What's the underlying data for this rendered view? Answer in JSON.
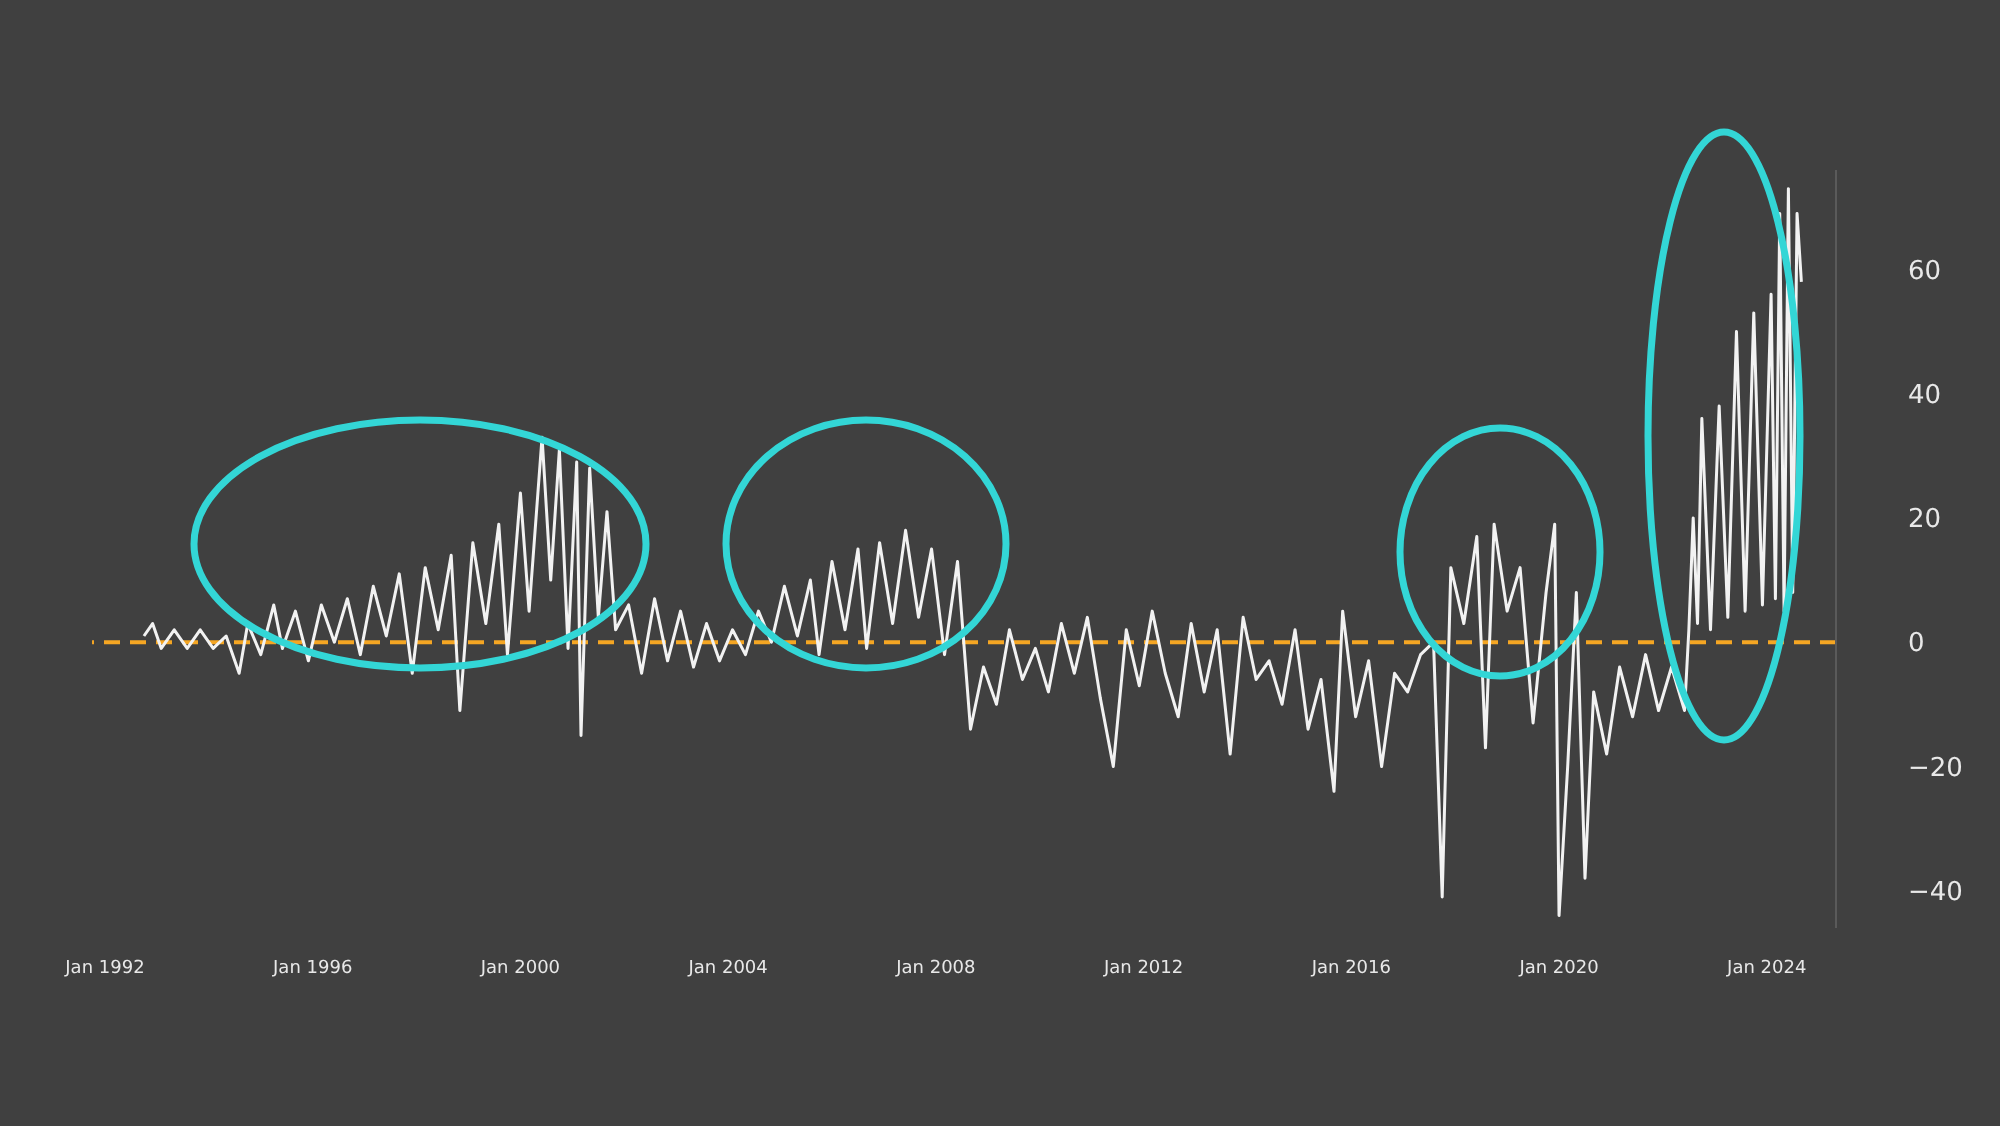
{
  "chart_data": {
    "type": "line",
    "x": [
      "1992-10",
      "1992-12",
      "1993-02",
      "1993-05",
      "1993-08",
      "1993-11",
      "1994-02",
      "1994-05",
      "1994-08",
      "1994-10",
      "1995-01",
      "1995-04",
      "1995-06",
      "1995-09",
      "1995-12",
      "1996-03",
      "1996-06",
      "1996-09",
      "1996-12",
      "1997-03",
      "1997-06",
      "1997-09",
      "1997-12",
      "1998-03",
      "1998-06",
      "1998-09",
      "1998-11",
      "1999-02",
      "1999-05",
      "1999-08",
      "1999-10",
      "2000-01",
      "2000-03",
      "2000-06",
      "2000-08",
      "2000-10",
      "2000-12",
      "2001-02",
      "2001-03",
      "2001-05",
      "2001-07",
      "2001-09",
      "2001-11",
      "2002-02",
      "2002-05",
      "2002-08",
      "2002-11",
      "2003-02",
      "2003-05",
      "2003-08",
      "2003-11",
      "2004-02",
      "2004-05",
      "2004-08",
      "2004-11",
      "2005-02",
      "2005-05",
      "2005-08",
      "2005-10",
      "2006-01",
      "2006-04",
      "2006-07",
      "2006-09",
      "2006-12",
      "2007-03",
      "2007-06",
      "2007-09",
      "2007-12",
      "2008-03",
      "2008-06",
      "2008-09",
      "2008-12",
      "2009-03",
      "2009-06",
      "2009-09",
      "2009-12",
      "2010-03",
      "2010-06",
      "2010-09",
      "2010-12",
      "2011-03",
      "2011-06",
      "2011-09",
      "2011-12",
      "2012-03",
      "2012-06",
      "2012-09",
      "2012-12",
      "2013-03",
      "2013-06",
      "2013-09",
      "2013-12",
      "2014-03",
      "2014-06",
      "2014-09",
      "2014-12",
      "2015-03",
      "2015-06",
      "2015-09",
      "2015-11",
      "2016-02",
      "2016-05",
      "2016-08",
      "2016-11",
      "2017-02",
      "2017-05",
      "2017-08",
      "2017-10",
      "2017-12",
      "2018-03",
      "2018-06",
      "2018-08",
      "2018-10",
      "2019-01",
      "2019-04",
      "2019-07",
      "2019-10",
      "2019-12",
      "2020-01",
      "2020-03",
      "2020-05",
      "2020-07",
      "2020-09",
      "2020-12",
      "2021-03",
      "2021-06",
      "2021-09",
      "2021-12",
      "2022-03",
      "2022-06",
      "2022-07",
      "2022-08",
      "2022-09",
      "2022-10",
      "2022-12",
      "2023-02",
      "2023-04",
      "2023-06",
      "2023-08",
      "2023-10",
      "2023-12",
      "2024-02",
      "2024-03",
      "2024-04",
      "2024-05",
      "2024-06",
      "2024-07",
      "2024-08",
      "2024-09"
    ],
    "series": [
      {
        "color": "#f2f2f2",
        "values": [
          1,
          3,
          -1,
          2,
          -1,
          2,
          -1,
          1,
          -5,
          3,
          -2,
          6,
          -1,
          5,
          -3,
          6,
          0,
          7,
          -2,
          9,
          1,
          11,
          -5,
          12,
          2,
          14,
          -11,
          16,
          3,
          19,
          -2,
          24,
          5,
          33,
          10,
          31,
          -1,
          29,
          -15,
          28,
          4,
          21,
          2,
          6,
          -5,
          7,
          -3,
          5,
          -4,
          3,
          -3,
          2,
          -2,
          5,
          0,
          9,
          1,
          10,
          -2,
          13,
          2,
          15,
          -1,
          16,
          3,
          18,
          4,
          15,
          -2,
          13,
          -14,
          -4,
          -10,
          2,
          -6,
          -1,
          -8,
          3,
          -5,
          4,
          -9,
          -20,
          2,
          -7,
          5,
          -5,
          -12,
          3,
          -8,
          2,
          -18,
          4,
          -6,
          -3,
          -10,
          2,
          -14,
          -6,
          -24,
          5,
          -12,
          -3,
          -20,
          -5,
          -8,
          -2,
          0,
          -41,
          12,
          3,
          17,
          -17,
          19,
          5,
          12,
          -13,
          8,
          19,
          -44,
          -20,
          8,
          -38,
          -8,
          -18,
          -4,
          -12,
          -2,
          -11,
          -4,
          -11,
          2,
          20,
          3,
          36,
          2,
          38,
          4,
          50,
          5,
          53,
          6,
          56,
          7,
          69,
          5,
          73,
          8,
          69,
          58
        ]
      }
    ],
    "xlim": [
      "1991-10",
      "2025-05"
    ],
    "xticks": [
      {
        "value": "1992-01",
        "label": "Jan 1992"
      },
      {
        "value": "1996-01",
        "label": "Jan 1996"
      },
      {
        "value": "2000-01",
        "label": "Jan 2000"
      },
      {
        "value": "2004-01",
        "label": "Jan 2004"
      },
      {
        "value": "2008-01",
        "label": "Jan 2008"
      },
      {
        "value": "2012-01",
        "label": "Jan 2012"
      },
      {
        "value": "2016-01",
        "label": "Jan 2016"
      },
      {
        "value": "2020-01",
        "label": "Jan 2020"
      },
      {
        "value": "2024-01",
        "label": "Jan 2024"
      }
    ],
    "ylim": [
      -46,
      76
    ],
    "yticks": [
      {
        "value": -40,
        "label": "−40"
      },
      {
        "value": -20,
        "label": "−20"
      },
      0,
      20,
      40,
      60
    ],
    "ref_lines": [
      {
        "axis": "y",
        "value": 0,
        "color": "#f5a623",
        "line_style": "dashed"
      }
    ],
    "grid": false,
    "legend": false,
    "marker": "none",
    "line_style": "solid"
  }
}
